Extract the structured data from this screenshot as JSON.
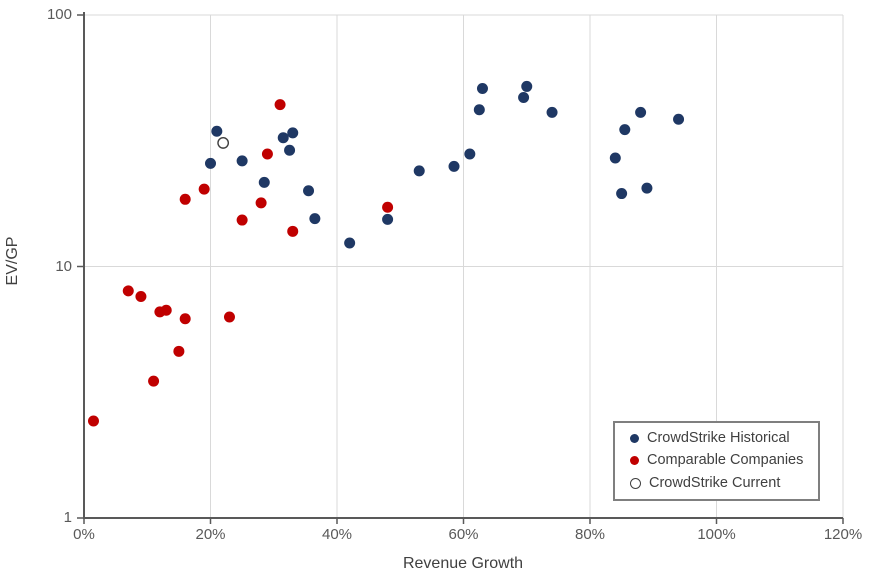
{
  "chart_data": {
    "type": "scatter",
    "title": "",
    "xlabel": "Revenue Growth",
    "ylabel": "EV/GP",
    "x_axis": {
      "min": 0,
      "max": 120,
      "unit": "percent",
      "ticks": [
        0,
        20,
        40,
        60,
        80,
        100,
        120
      ],
      "tick_labels": [
        "0%",
        "20%",
        "40%",
        "60%",
        "80%",
        "100%",
        "120%"
      ]
    },
    "y_axis": {
      "scale": "log",
      "min": 1,
      "max": 100,
      "ticks": [
        1,
        10,
        100
      ],
      "tick_labels": [
        "1",
        "10",
        "100"
      ]
    },
    "grid": {
      "color": "#D9D9D9",
      "vertical": true,
      "horizontal": true
    },
    "axis_color": "#595959",
    "legend_position": "bottom-right",
    "series": [
      {
        "name": "CrowdStrike Historical",
        "marker": "filled-circle",
        "color": "#1F3864",
        "points": [
          [
            20,
            25.7
          ],
          [
            21,
            34.5
          ],
          [
            25,
            26.3
          ],
          [
            28.5,
            21.6
          ],
          [
            31.5,
            32.5
          ],
          [
            33,
            34
          ],
          [
            32.5,
            29
          ],
          [
            35.5,
            20
          ],
          [
            36.5,
            15.5
          ],
          [
            42,
            12.4
          ],
          [
            48,
            15.4
          ],
          [
            53,
            24
          ],
          [
            58.5,
            25
          ],
          [
            61,
            28
          ],
          [
            62.5,
            42
          ],
          [
            63,
            51
          ],
          [
            69.5,
            47
          ],
          [
            70,
            52
          ],
          [
            74,
            41
          ],
          [
            84,
            27
          ],
          [
            85.5,
            35
          ],
          [
            88,
            41
          ],
          [
            94,
            38.5
          ],
          [
            85,
            19.5
          ],
          [
            89,
            20.5
          ]
        ]
      },
      {
        "name": "Comparable Companies",
        "marker": "filled-circle",
        "color": "#C00000",
        "points": [
          [
            1.5,
            2.43
          ],
          [
            7,
            8
          ],
          [
            9,
            7.6
          ],
          [
            12,
            6.6
          ],
          [
            13,
            6.7
          ],
          [
            16,
            6.2
          ],
          [
            23,
            6.3
          ],
          [
            15,
            4.6
          ],
          [
            11,
            3.5
          ],
          [
            16,
            18.5
          ],
          [
            19,
            20.3
          ],
          [
            25,
            15.3
          ],
          [
            28,
            17.9
          ],
          [
            29,
            28
          ],
          [
            31,
            44
          ],
          [
            33,
            13.8
          ],
          [
            48,
            17.2
          ]
        ]
      },
      {
        "name": "CrowdStrike Current",
        "marker": "open-circle",
        "color": "#FFFFFF",
        "outline_color": "#404040",
        "points": [
          [
            22,
            31
          ]
        ]
      }
    ]
  }
}
